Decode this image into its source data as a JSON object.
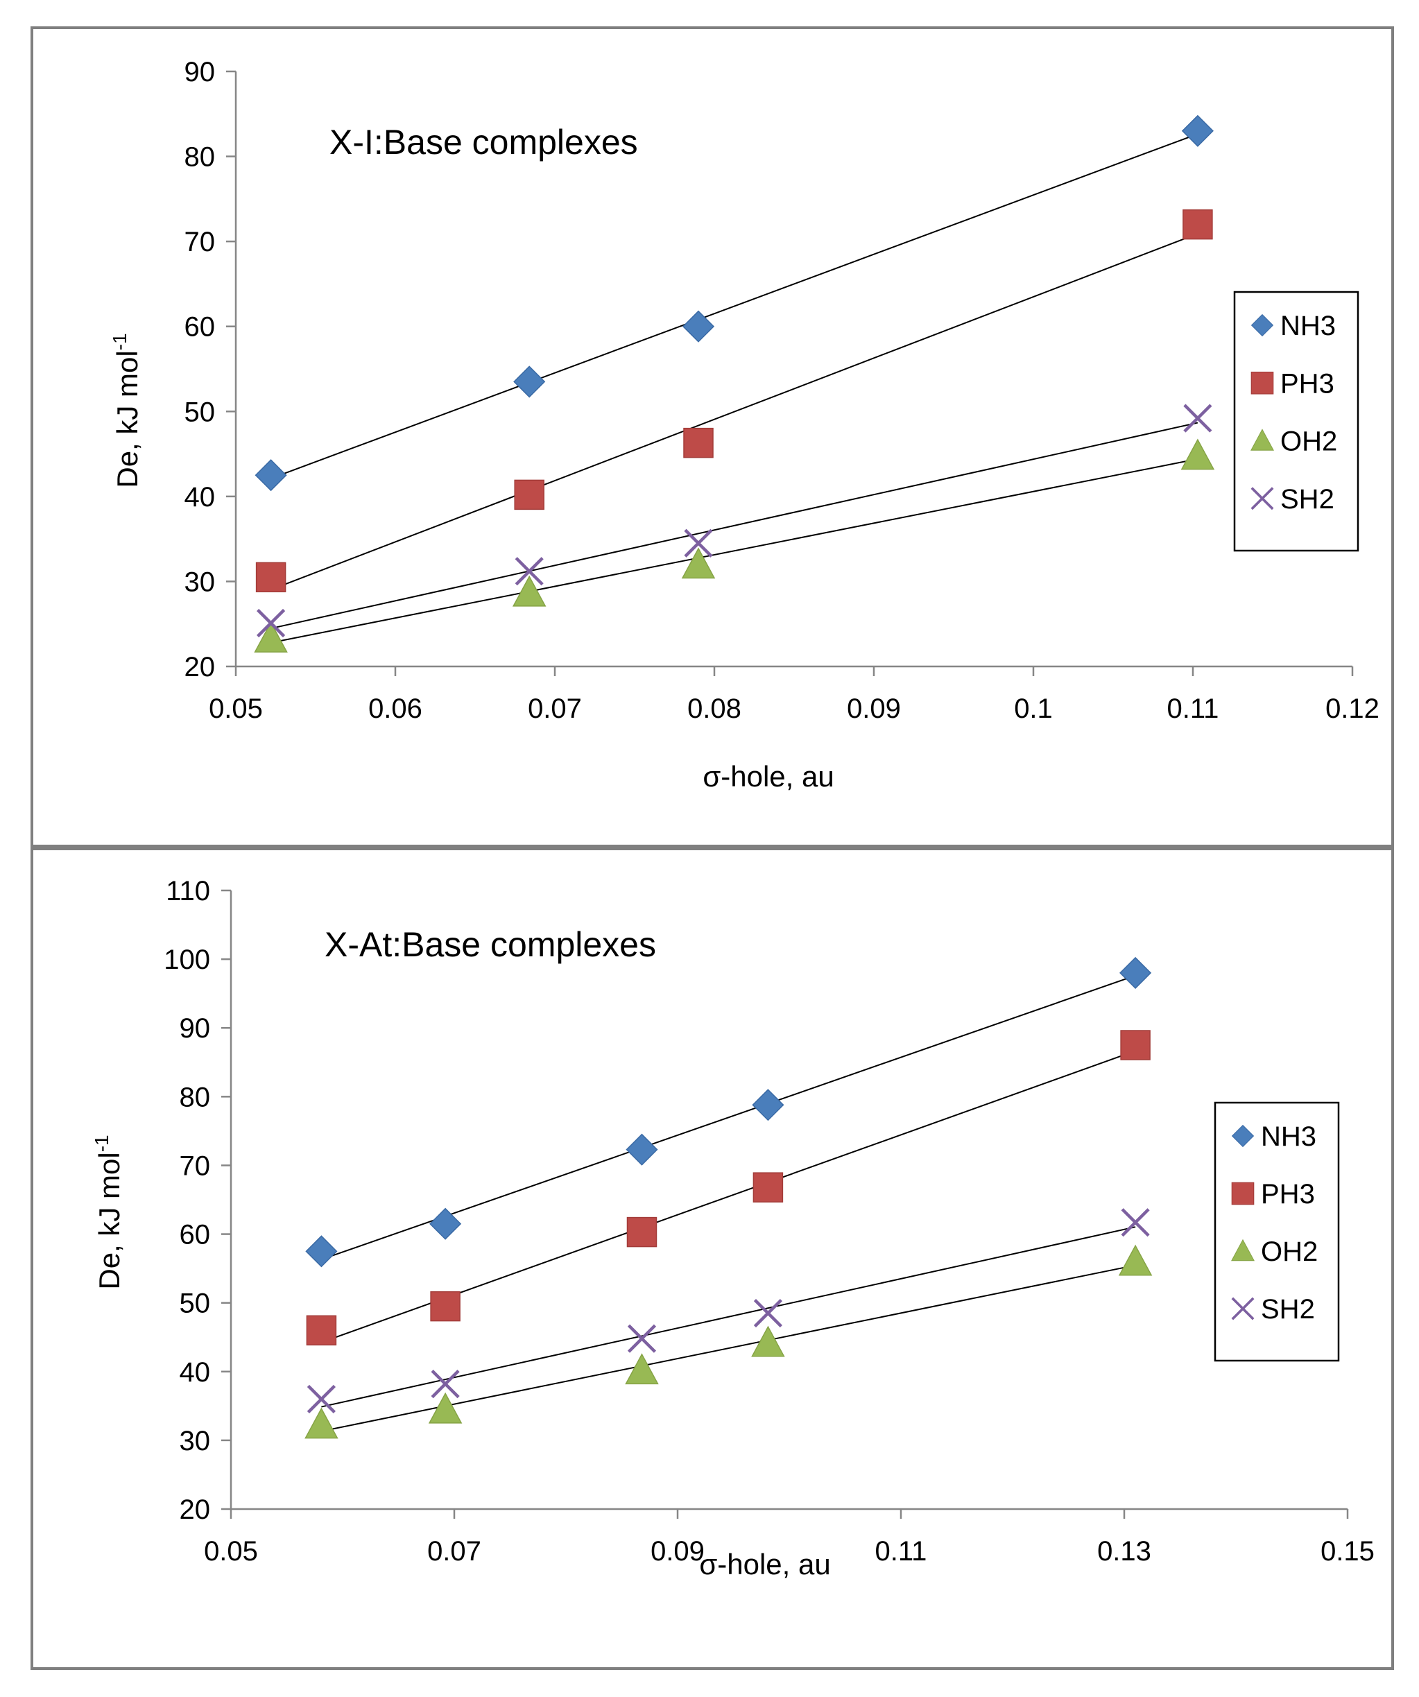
{
  "chart_data": [
    {
      "type": "scatter",
      "title": "X-I:Base complexes",
      "xlabel": "σ-hole, au",
      "ylabel": "De, kJ mol",
      "ylabel_sup": "-1",
      "xlim": [
        0.05,
        0.12
      ],
      "ylim": [
        20,
        90
      ],
      "xticks": [
        0.05,
        0.06,
        0.07,
        0.08,
        0.09,
        0.1,
        0.11,
        0.12
      ],
      "xtick_labels": [
        "0.05",
        "0.06",
        "0.07",
        "0.08",
        "0.09",
        "0.1",
        "0.11",
        "0.12"
      ],
      "yticks": [
        20,
        30,
        40,
        50,
        60,
        70,
        80,
        90
      ],
      "ytick_labels": [
        "20",
        "30",
        "40",
        "50",
        "60",
        "70",
        "80",
        "90"
      ],
      "legend_position": "right",
      "trendline": "linear",
      "series": [
        {
          "name": "NH3",
          "marker": "diamond",
          "color": "#4a7ebb",
          "x": [
            0.0522,
            0.0684,
            0.079,
            0.1103
          ],
          "y": [
            42.5,
            53.5,
            60,
            83
          ]
        },
        {
          "name": "PH3",
          "marker": "square",
          "color": "#be4b48",
          "x": [
            0.0522,
            0.0684,
            0.079,
            0.1103
          ],
          "y": [
            30.5,
            40.2,
            46.3,
            72
          ]
        },
        {
          "name": "OH2",
          "marker": "triangle",
          "color": "#98b954",
          "x": [
            0.0522,
            0.0684,
            0.079,
            0.1103
          ],
          "y": [
            23.3,
            28.7,
            32,
            44.8
          ]
        },
        {
          "name": "SH2",
          "marker": "cross",
          "color": "#7d60a0",
          "x": [
            0.0522,
            0.0684,
            0.079,
            0.1103
          ],
          "y": [
            25.1,
            31.2,
            34.5,
            49.2
          ]
        }
      ]
    },
    {
      "type": "scatter",
      "title": "X-At:Base complexes",
      "xlabel": "σ-hole, au",
      "ylabel": "De, kJ mol",
      "ylabel_sup": "-1",
      "xlim": [
        0.05,
        0.15
      ],
      "ylim": [
        20,
        110
      ],
      "xticks": [
        0.05,
        0.07,
        0.09,
        0.11,
        0.13,
        0.15
      ],
      "xtick_labels": [
        "0.05",
        "0.07",
        "0.09",
        "0.11",
        "0.13",
        "0.15"
      ],
      "yticks": [
        20,
        30,
        40,
        50,
        60,
        70,
        80,
        90,
        100,
        110
      ],
      "ytick_labels": [
        "20",
        "30",
        "40",
        "50",
        "60",
        "70",
        "80",
        "90",
        "100",
        "110"
      ],
      "legend_position": "right",
      "trendline": "linear",
      "series": [
        {
          "name": "NH3",
          "marker": "diamond",
          "color": "#4a7ebb",
          "x": [
            0.0581,
            0.0692,
            0.0868,
            0.0981,
            0.131
          ],
          "y": [
            57.5,
            61.5,
            72.3,
            78.8,
            98
          ]
        },
        {
          "name": "PH3",
          "marker": "square",
          "color": "#be4b48",
          "x": [
            0.0581,
            0.0692,
            0.0868,
            0.0981,
            0.131
          ],
          "y": [
            46,
            49.5,
            60.3,
            66.8,
            87.5
          ]
        },
        {
          "name": "OH2",
          "marker": "triangle",
          "color": "#98b954",
          "x": [
            0.0581,
            0.0692,
            0.0868,
            0.0981,
            0.131
          ],
          "y": [
            32.3,
            34.5,
            40.2,
            44.2,
            56
          ]
        },
        {
          "name": "SH2",
          "marker": "cross",
          "color": "#7d60a0",
          "x": [
            0.0581,
            0.0692,
            0.0868,
            0.0981,
            0.131
          ],
          "y": [
            36,
            38.2,
            44.8,
            48.5,
            61.7
          ]
        }
      ]
    }
  ]
}
